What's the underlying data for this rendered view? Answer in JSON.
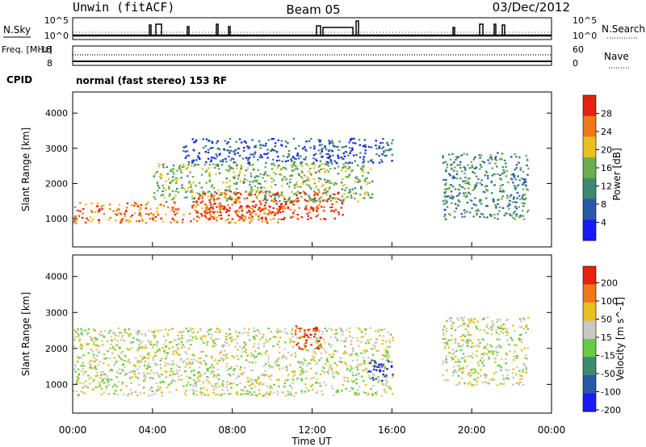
{
  "header": {
    "station": "Unwin (fitACF)",
    "beam": "Beam 05",
    "date": "03/Dec/2012"
  },
  "chart_data": [
    {
      "type": "line",
      "panel": "noise",
      "left_label": "N.Sky",
      "right_label": "N.Search",
      "left_ticks": [
        "10^5",
        "10^0"
      ],
      "right_ticks": [
        "10^5",
        "10^0"
      ],
      "note": "noise traces: baseline near 10^0 with short spikes"
    },
    {
      "type": "line",
      "panel": "frequency",
      "left_label": "Freq. [MHz]",
      "right_label": "Nave",
      "left_ticks": [
        "18",
        "8"
      ],
      "right_ticks": [
        "60",
        "0"
      ]
    },
    {
      "type": "table",
      "panel": "cpid",
      "label": "CPID",
      "value": "normal (fast stereo) 153 RF"
    },
    {
      "type": "heatmap",
      "panel": "power",
      "ylabel": "Slant Range [km]",
      "y_ticks": [
        "4000",
        "3000",
        "2000",
        "1000"
      ],
      "ylim": [
        200,
        4600
      ],
      "colorbar_label": "Power [dB]",
      "colorbar_ticks": [
        "28",
        "24",
        "20",
        "16",
        "12",
        "8",
        "4"
      ],
      "colors": [
        "#1a1aff",
        "#2a58a8",
        "#3c8a70",
        "#6aae50",
        "#e8c020",
        "#f07818",
        "#e82010"
      ],
      "regions": [
        {
          "t0": 0.0,
          "t1": 10.5,
          "r0": 900,
          "r1": 1500,
          "level": 5
        },
        {
          "t0": 6.0,
          "t1": 13.5,
          "r0": 1000,
          "r1": 1800,
          "level": 6
        },
        {
          "t0": 4.0,
          "t1": 15.0,
          "r0": 1500,
          "r1": 2600,
          "level": 3
        },
        {
          "t0": 5.5,
          "t1": 16.0,
          "r0": 2600,
          "r1": 3300,
          "level": 1
        },
        {
          "t0": 18.5,
          "t1": 22.8,
          "r0": 1000,
          "r1": 2900,
          "level": 2
        }
      ]
    },
    {
      "type": "heatmap",
      "panel": "velocity",
      "ylabel": "Slant Range [km]",
      "y_ticks": [
        "4000",
        "3000",
        "2000",
        "1000"
      ],
      "ylim": [
        200,
        4600
      ],
      "colorbar_label": "Velocity [m s^-1]",
      "colorbar_ticks": [
        "200",
        "100",
        "50",
        "15",
        "-15",
        "-50",
        "-100",
        "-200"
      ],
      "colors": [
        "#1a1aff",
        "#2a58a8",
        "#3c8a70",
        "#66cc44",
        "#c8c8c4",
        "#e8c020",
        "#f07818",
        "#e82010"
      ],
      "regions": [
        {
          "t0": 0.0,
          "t1": 16.0,
          "r0": 700,
          "r1": 2600,
          "level": 4
        },
        {
          "t0": 11.0,
          "t1": 12.5,
          "r0": 2000,
          "r1": 2700,
          "level": 7
        },
        {
          "t0": 14.8,
          "t1": 16.0,
          "r0": 1100,
          "r1": 1700,
          "level": 0
        },
        {
          "t0": 18.5,
          "t1": 22.8,
          "r0": 1000,
          "r1": 2900,
          "level": 4
        }
      ]
    }
  ],
  "x_axis": {
    "label": "Time UT",
    "ticks": [
      "00:00",
      "04:00",
      "08:00",
      "12:00",
      "16:00",
      "20:00",
      "00:00"
    ],
    "xlim": [
      0,
      24
    ]
  }
}
